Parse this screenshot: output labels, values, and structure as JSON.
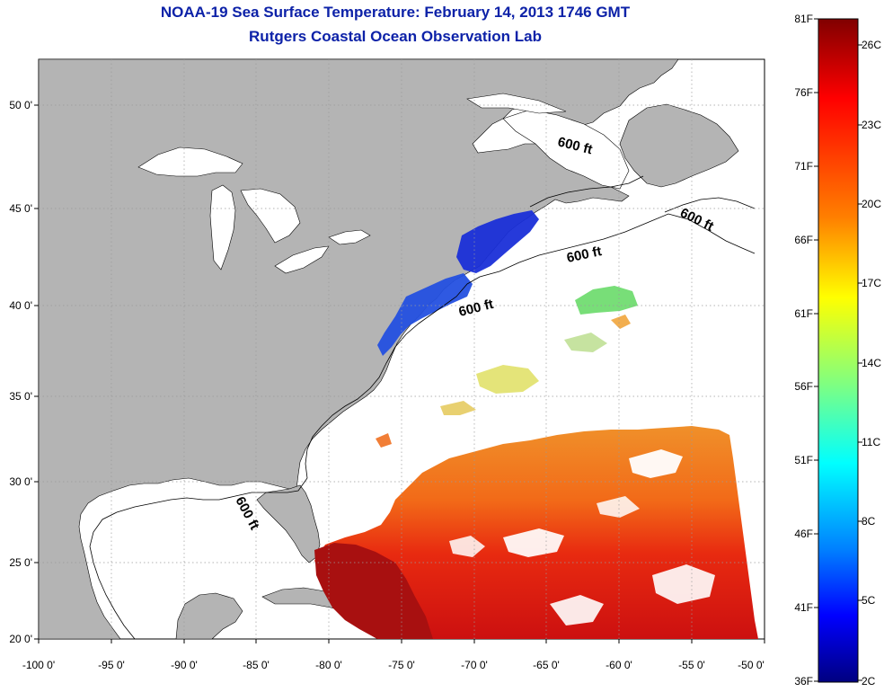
{
  "title": {
    "line1": "NOAA-19 Sea Surface Temperature:  February 14, 2013 1746 GMT",
    "line2": "Rutgers Coastal Ocean Observation Lab"
  },
  "map": {
    "x_ticks": [
      "-100 0'",
      "-95 0'",
      "-90 0'",
      "-85 0'",
      "-80 0'",
      "-75 0'",
      "-70 0'",
      "-65 0'",
      "-60 0'",
      "-55 0'",
      "-50 0'"
    ],
    "y_ticks": [
      "50 0'",
      "45 0'",
      "40 0'",
      "35 0'",
      "30 0'",
      "25 0'",
      "20 0'"
    ],
    "contour_labels": [
      "600 ft",
      "600 ft",
      "600 ft",
      "600 ft",
      "600 ft"
    ],
    "colors": {
      "land": "#b4b4b4",
      "ocean": "#ffffff",
      "grid": "#9a9a9a"
    }
  },
  "colorbar": {
    "left_labels": [
      "81F",
      "76F",
      "71F",
      "66F",
      "61F",
      "56F",
      "51F",
      "46F",
      "41F",
      "36F"
    ],
    "right_labels": [
      "26C",
      "23C",
      "20C",
      "17C",
      "14C",
      "11C",
      "8C",
      "5C",
      "2C"
    ],
    "colors": [
      "#800000",
      "#ff0000",
      "#ff8000",
      "#ffff00",
      "#80ff80",
      "#00ffff",
      "#0080ff",
      "#0000ff",
      "#000080"
    ]
  }
}
